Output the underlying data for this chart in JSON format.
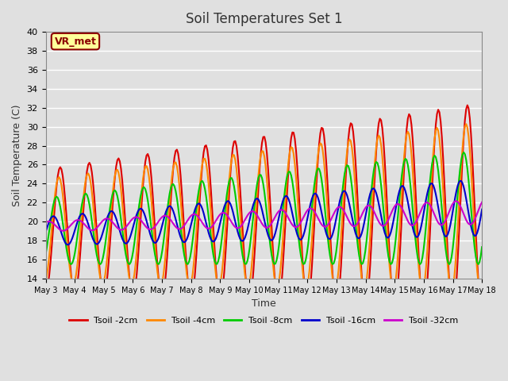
{
  "title": "Soil Temperatures Set 1",
  "xlabel": "Time",
  "ylabel": "Soil Temperature (C)",
  "ylim": [
    14,
    40
  ],
  "yticks": [
    14,
    16,
    18,
    20,
    22,
    24,
    26,
    28,
    30,
    32,
    34,
    36,
    38,
    40
  ],
  "background_color": "#e0e0e0",
  "plot_bg_color": "#e0e0e0",
  "grid_color": "#ffffff",
  "annotation_text": "VR_met",
  "annotation_bg": "#ffff99",
  "annotation_border": "#8B0000",
  "series": [
    {
      "label": "Tsoil -2cm",
      "color": "#dd0000",
      "lw": 1.5
    },
    {
      "label": "Tsoil -4cm",
      "color": "#ff8800",
      "lw": 1.5
    },
    {
      "label": "Tsoil -8cm",
      "color": "#00cc00",
      "lw": 1.5
    },
    {
      "label": "Tsoil -16cm",
      "color": "#0000cc",
      "lw": 1.5
    },
    {
      "label": "Tsoil -32cm",
      "color": "#cc00cc",
      "lw": 1.5
    }
  ],
  "n_days": 15,
  "points_per_day": 24,
  "day_labels": [
    "May 3",
    "May 4",
    "May 5",
    "May 6",
    "May 7",
    "May 8",
    "May 9",
    "May 10",
    "May 11",
    "May 12",
    "May 13",
    "May 14",
    "May 15",
    "May 16",
    "May 17",
    "May 18"
  ]
}
